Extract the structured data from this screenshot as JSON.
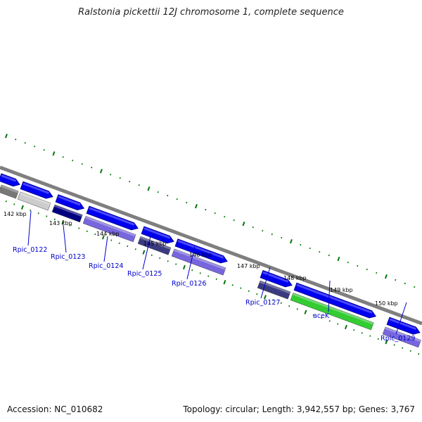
{
  "title": "Ralstonia pickettii 12J chromosome 1, complete sequence",
  "footer": {
    "accession": "Accession: NC_010682",
    "summary": "Topology: circular; Length: 3,942,557 bp; Genes: 3,767"
  },
  "colors": {
    "backbone": "#7f7f7f",
    "tick": "#007700",
    "gene_arrow": "#0000ee",
    "label": "#0000cc",
    "hit_lavender": "#7766dd",
    "hit_green": "#33cc33",
    "hit_navy": "#000080",
    "hit_dark_slate": "#3a3a80",
    "hit_gray": "#777777",
    "hit_light_gray": "#cccccc"
  },
  "kbp_ticks": [
    "142 kbp",
    "143 kbp",
    "144 kbp",
    "145 kbp",
    "146 kbp",
    "147 kbp",
    "148 kbp",
    "149 kbp",
    "150 kbp"
  ],
  "gene_labels": [
    "Rpic_0122",
    "Rpic_0123",
    "Rpic_0124",
    "Rpic_0125",
    "Rpic_0126",
    "Rpic_0127",
    "aceK",
    "Rpic_0129"
  ]
}
